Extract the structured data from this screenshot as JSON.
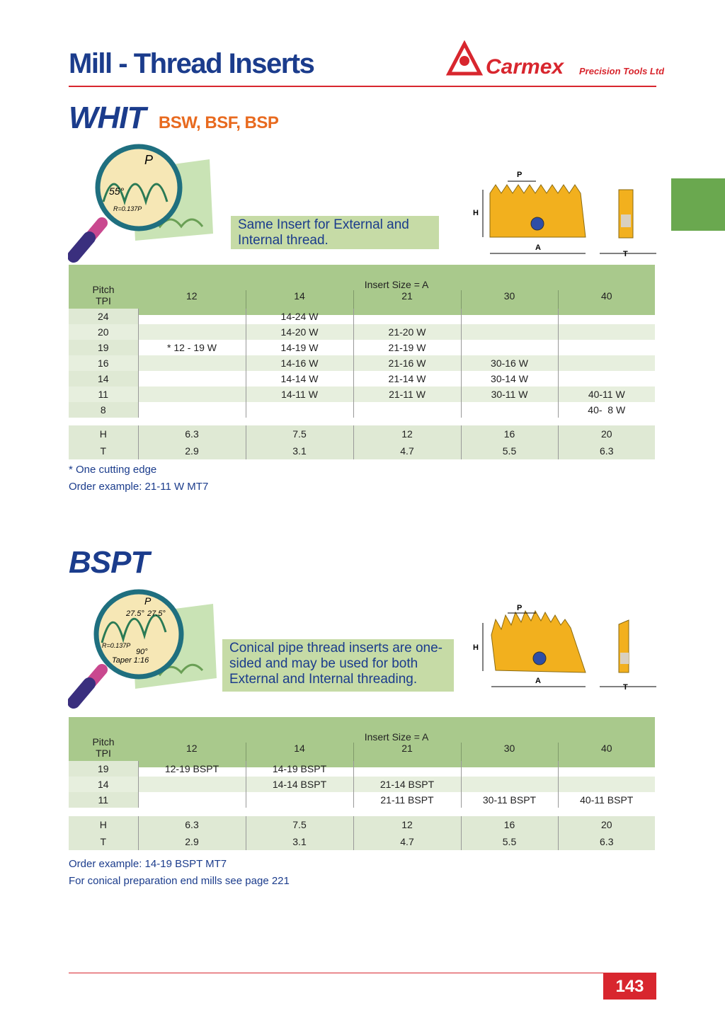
{
  "header": {
    "title": "Mill - Thread Inserts",
    "brand": "Carmex",
    "brand_sub": "Precision Tools Ltd."
  },
  "sections": [
    {
      "title": "WHIT",
      "subtitle": "BSW, BSF, BSP",
      "illustration_labels": [
        "P",
        "55°",
        "R=0.137P"
      ],
      "note": "Same Insert for External and Internal thread.",
      "diagram_labels": [
        "P",
        "H",
        "A",
        "T"
      ],
      "table": {
        "corner": [
          "Pitch",
          "TPI"
        ],
        "size_header": "Insert Size = A",
        "sizes": [
          "12",
          "14",
          "21",
          "30",
          "40"
        ],
        "rows": [
          [
            "24",
            null,
            "14-24 W",
            null,
            null,
            null
          ],
          [
            "20",
            null,
            "14-20 W",
            "21-20 W",
            null,
            null
          ],
          [
            "19",
            "* 12 - 19 W",
            "14-19 W",
            "21-19 W",
            null,
            null
          ],
          [
            "16",
            null,
            "14-16 W",
            "21-16 W",
            "30-16 W",
            null
          ],
          [
            "14",
            null,
            "14-14 W",
            "21-14 W",
            "30-14 W",
            null
          ],
          [
            "11",
            null,
            "14-11 W",
            "21-11 W",
            "30-11 W",
            "40-11 W"
          ],
          [
            "8",
            null,
            null,
            null,
            null,
            "40-  8 W"
          ]
        ],
        "dims": [
          [
            "H",
            "6.3",
            "7.5",
            "12",
            "16",
            "20"
          ],
          [
            "T",
            "2.9",
            "3.1",
            "4.7",
            "5.5",
            "6.3"
          ]
        ]
      },
      "footnotes": [
        "* One cutting edge",
        "Order example: 21-11 W MT7"
      ]
    },
    {
      "title": "BSPT",
      "illustration_labels": [
        "P",
        "27.5°",
        "27.5°",
        "R=0.137P",
        "90°",
        "Taper 1:16"
      ],
      "note": "Conical pipe thread inserts are one-sided and may be used for both External and Internal threading.",
      "diagram_labels": [
        "P",
        "H",
        "A",
        "T"
      ],
      "table": {
        "corner": [
          "Pitch",
          "TPI"
        ],
        "size_header": "Insert Size = A",
        "sizes": [
          "12",
          "14",
          "21",
          "30",
          "40"
        ],
        "rows": [
          [
            "19",
            "12-19 BSPT",
            "14-19 BSPT",
            null,
            null,
            null
          ],
          [
            "14",
            null,
            "14-14 BSPT",
            "21-14 BSPT",
            null,
            null
          ],
          [
            "11",
            null,
            null,
            "21-11 BSPT",
            "30-11 BSPT",
            "40-11 BSPT"
          ]
        ],
        "dims": [
          [
            "H",
            "6.3",
            "7.5",
            "12",
            "16",
            "20"
          ],
          [
            "T",
            "2.9",
            "3.1",
            "4.7",
            "5.5",
            "6.3"
          ]
        ]
      },
      "footnotes": [
        "Order example: 14-19 BSPT MT7",
        "For conical preparation end mills see page 221"
      ]
    }
  ],
  "page_number": "143"
}
